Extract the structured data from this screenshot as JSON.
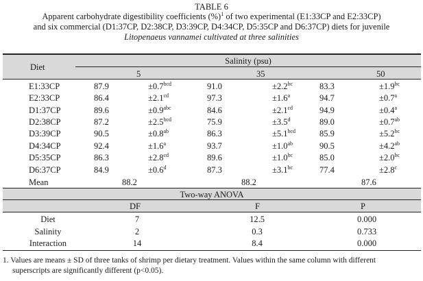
{
  "caption": {
    "title": "TABLE 6",
    "line1_pre": "Apparent carbohydrate digestibility coefficients (%)",
    "line1_sup": "1",
    "line1_post": " of two experimental (E1:33CP and E2:33CP)",
    "line2": "and six commercial (D1:37CP, D2:38CP, D3:39CP, D4:34CP, D5:35CP and D6:37CP) diets for juvenile",
    "line3": "Litopenaeus vannamei cultivated at three salinities"
  },
  "table": {
    "diet_header": "Diet",
    "salinity_header": "Salinity (psu)",
    "salinity_levels": [
      "5",
      "35",
      "50"
    ],
    "rows": [
      {
        "diet": "E1:33CP",
        "v5": "87.9",
        "sd5": "±0.7",
        "s5": "bcd",
        "v35": "91.0",
        "sd35": "±2.2",
        "s35": "bc",
        "v50": "83.3",
        "sd50": "±1.9",
        "s50": "bc"
      },
      {
        "diet": "E2:33CP",
        "v5": "86.4",
        "sd5": "±2.1",
        "s5": "cd",
        "v35": "97.3",
        "sd35": "±1.6",
        "s35": "a",
        "v50": "94.7",
        "sd50": "±0.7",
        "s50": "a"
      },
      {
        "diet": "D1:37CP",
        "v5": "89.6",
        "sd5": "±0.9",
        "s5": "abc",
        "v35": "84.6",
        "sd35": "±2.1",
        "s35": "cd",
        "v50": "94.9",
        "sd50": "±0.4",
        "s50": "a"
      },
      {
        "diet": "D2:38CP",
        "v5": "87.2",
        "sd5": "±2.5",
        "s5": "bcd",
        "v35": "75.9",
        "sd35": "±3.5",
        "s35": "d",
        "v50": "89.0",
        "sd50": "±0.7",
        "s50": "ab"
      },
      {
        "diet": "D3:39CP",
        "v5": "90.5",
        "sd5": "±0.8",
        "s5": "ab",
        "v35": "86.3",
        "sd35": "±5.1",
        "s35": "bcd",
        "v50": "85.9",
        "sd50": "±5.2",
        "s50": "bc"
      },
      {
        "diet": "D4:34CP",
        "v5": "92.4",
        "sd5": "±1.6",
        "s5": "a",
        "v35": "93.7",
        "sd35": "±1.0",
        "s35": "ab",
        "v50": "90.5",
        "sd50": "±4.2",
        "s50": "ab"
      },
      {
        "diet": "D5:35CP",
        "v5": "86.3",
        "sd5": "±2.8",
        "s5": "cd",
        "v35": "89.6",
        "sd35": "±1.0",
        "s35": "bc",
        "v50": "85.0",
        "sd50": "±2.0",
        "s50": "bc"
      },
      {
        "diet": "D6:37CP",
        "v5": "84.9",
        "sd5": "±0.6",
        "s5": "d",
        "v35": "87.3",
        "sd35": "±3.1",
        "s35": "bc",
        "v50": "77.4",
        "sd50": "±2.8",
        "s50": "c"
      }
    ],
    "mean": {
      "label": "Mean",
      "v5": "88.2",
      "v35": "88.2",
      "v50": "87.6"
    }
  },
  "anova": {
    "title": "Two-way ANOVA",
    "headers": [
      "DF",
      "F",
      "P"
    ],
    "rows": [
      {
        "label": "Diet",
        "df": "7",
        "f": "12.5",
        "p": "0.000"
      },
      {
        "label": "Salinity",
        "df": "2",
        "f": "0.3",
        "p": "0.733"
      },
      {
        "label": "Interaction",
        "df": "14",
        "f": "8.4",
        "p": "0.000"
      }
    ]
  },
  "footnote": {
    "line1": "1.  Values are means ± SD of three tanks of shrimp per dietary treatment. Values within the same column with different",
    "line2": "superscripts are significantly different (p<0.05)."
  }
}
